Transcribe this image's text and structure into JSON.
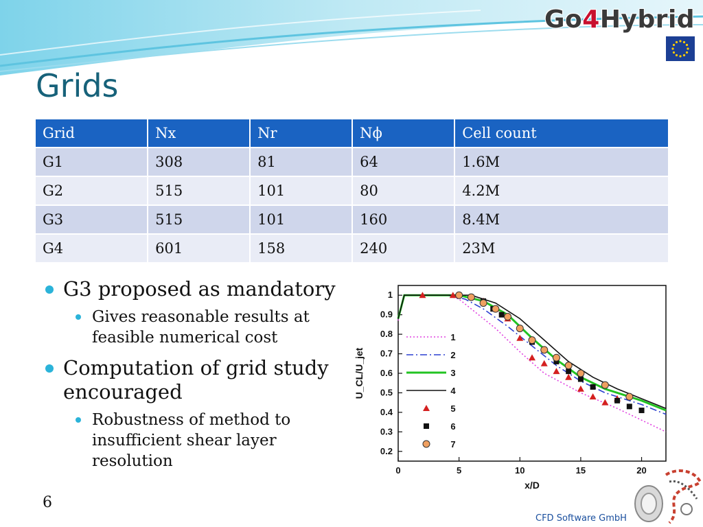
{
  "header": {
    "logo_pre": "Go",
    "logo_num": "4",
    "logo_post": "Hybrid"
  },
  "slide": {
    "title": "Grids",
    "page_number": "6",
    "footer": "CFD Software GmbH"
  },
  "table": {
    "headers": [
      "Grid",
      "Nx",
      "Nr",
      "Nϕ",
      "Cell count"
    ],
    "rows": [
      [
        "G1",
        "308",
        "81",
        "64",
        "1.6M"
      ],
      [
        "G2",
        "515",
        "101",
        "80",
        "4.2M"
      ],
      [
        "G3",
        "515",
        "101",
        "160",
        "8.4M"
      ],
      [
        "G4",
        "601",
        "158",
        "240",
        "23M"
      ]
    ]
  },
  "bullets": [
    {
      "text": "G3 proposed as mandatory",
      "sub": [
        "Gives reasonable results at feasible numerical cost"
      ]
    },
    {
      "text": "Computation of grid study encouraged",
      "sub": [
        "Robustness of method to insufficient shear layer resolution"
      ]
    }
  ],
  "chart_data": {
    "type": "line",
    "xlabel": "x/D",
    "ylabel": "U_CL/U_jet",
    "xlim": [
      0,
      22
    ],
    "ylim": [
      0.15,
      1.05
    ],
    "xticks": [
      0,
      5,
      10,
      15,
      20
    ],
    "yticks": [
      0.2,
      0.3,
      0.4,
      0.5,
      0.6,
      0.7,
      0.8,
      0.9,
      1
    ],
    "legend_position": "left",
    "series": [
      {
        "name": "1",
        "kind": "line",
        "color": "#e040e0",
        "dash": "2,3",
        "x": [
          0,
          0.5,
          4,
          5,
          6,
          8,
          10,
          12,
          15,
          18,
          20,
          22
        ],
        "y": [
          0.87,
          1.0,
          1.0,
          0.98,
          0.93,
          0.83,
          0.71,
          0.6,
          0.5,
          0.42,
          0.36,
          0.3
        ]
      },
      {
        "name": "2",
        "kind": "line",
        "color": "#2a3fd0",
        "dash": "10,4,2,4",
        "x": [
          0,
          0.5,
          4,
          5.5,
          7,
          9,
          11,
          13,
          15,
          17,
          20,
          22
        ],
        "y": [
          0.88,
          1.0,
          1.0,
          0.98,
          0.93,
          0.84,
          0.74,
          0.64,
          0.56,
          0.5,
          0.44,
          0.39
        ]
      },
      {
        "name": "3",
        "kind": "line",
        "color": "#22c322",
        "dash": "",
        "x": [
          0,
          0.5,
          5,
          7,
          9,
          11,
          13,
          15,
          17,
          20,
          22
        ],
        "y": [
          0.88,
          1.0,
          1.0,
          0.97,
          0.9,
          0.78,
          0.67,
          0.58,
          0.52,
          0.46,
          0.41
        ]
      },
      {
        "name": "4",
        "kind": "line",
        "color": "#111111",
        "dash": "",
        "x": [
          0,
          0.5,
          6,
          8,
          10,
          12,
          14,
          16,
          18,
          20,
          22
        ],
        "y": [
          0.88,
          1.0,
          1.0,
          0.96,
          0.88,
          0.77,
          0.66,
          0.58,
          0.52,
          0.47,
          0.42
        ]
      },
      {
        "name": "5",
        "kind": "marker",
        "marker": "triangle",
        "color": "#d42020",
        "x": [
          2,
          4.5,
          7,
          8,
          9,
          10,
          11,
          12,
          13,
          14,
          15,
          16,
          17,
          18
        ],
        "y": [
          1.0,
          1.0,
          0.97,
          0.93,
          0.88,
          0.78,
          0.68,
          0.65,
          0.61,
          0.58,
          0.52,
          0.48,
          0.45,
          0.47
        ]
      },
      {
        "name": "6",
        "kind": "marker",
        "marker": "square",
        "color": "#111111",
        "x": [
          5,
          6,
          7,
          7.8,
          8.5,
          10,
          11,
          12,
          13,
          14,
          15,
          16,
          18,
          19,
          20
        ],
        "y": [
          1.0,
          0.99,
          0.97,
          0.93,
          0.9,
          0.83,
          0.76,
          0.72,
          0.66,
          0.61,
          0.57,
          0.53,
          0.46,
          0.43,
          0.41
        ]
      },
      {
        "name": "7",
        "kind": "marker",
        "marker": "circle",
        "color": "#f0a060",
        "x": [
          5,
          6,
          7,
          8,
          9,
          10,
          11,
          12,
          13,
          14,
          15,
          17,
          19
        ],
        "y": [
          1.0,
          0.99,
          0.96,
          0.93,
          0.89,
          0.83,
          0.77,
          0.72,
          0.68,
          0.64,
          0.6,
          0.54,
          0.48
        ]
      }
    ]
  }
}
